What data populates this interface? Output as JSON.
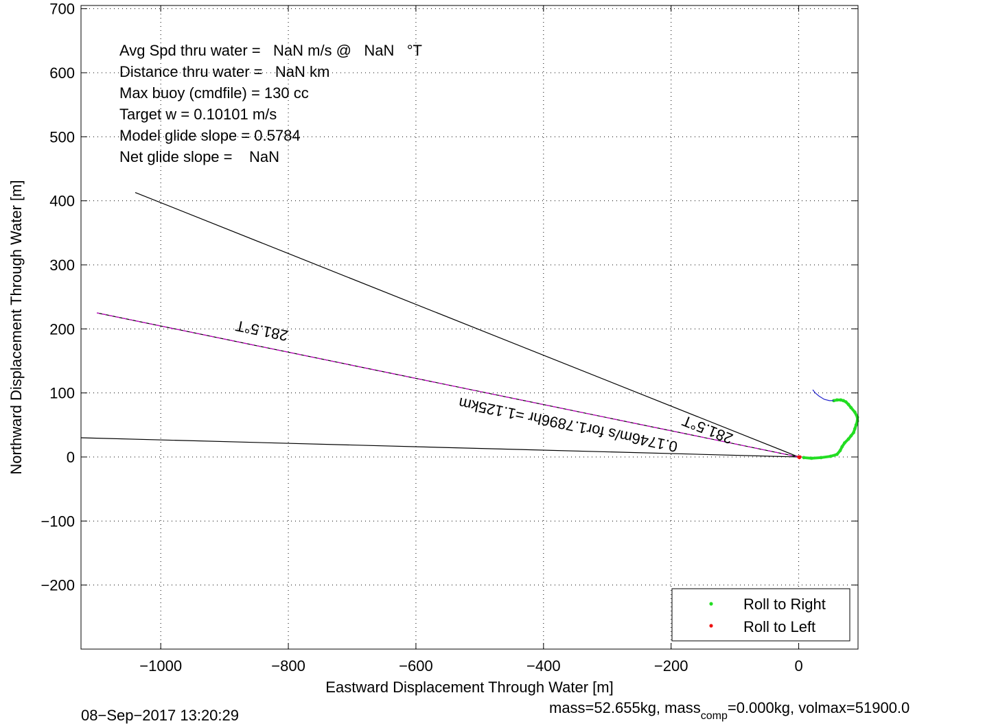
{
  "chart_data": {
    "type": "line",
    "xlabel": "Eastward Displacement Through Water [m]",
    "ylabel": "Northward Displacement Through Water [m]",
    "xlim": [
      -1125,
      93
    ],
    "ylim": [
      -300,
      705
    ],
    "xticks": [
      -1000,
      -800,
      -600,
      -400,
      -200,
      0
    ],
    "yticks": [
      -200,
      -100,
      0,
      100,
      200,
      300,
      400,
      500,
      600,
      700
    ],
    "xtick_labels": [
      "−1000",
      "−800",
      "−600",
      "−400",
      "−200",
      "0"
    ],
    "ytick_labels": [
      "−200",
      "−100",
      "0",
      "100",
      "200",
      "300",
      "400",
      "500",
      "600",
      "700"
    ],
    "grid": true,
    "annotations": [
      "Avg Spd thru water =   NaN m/s @   NaN   °T",
      "Distance thru water =   NaN km",
      "Max buoy (cmdfile) = 130 cc",
      "Target w = 0.10101 m/s",
      "Model glide slope = 0.5784",
      "Net glide slope =    NaN"
    ],
    "heading_lines": [
      {
        "color": "#000000",
        "x": [
          0,
          -1040
        ],
        "y": [
          0,
          413
        ]
      },
      {
        "color": "#000000",
        "x": [
          0,
          -1125
        ],
        "y": [
          0,
          30
        ]
      },
      {
        "color": "#cc00cc",
        "dashed": true,
        "x": [
          0,
          -1100
        ],
        "y": [
          0,
          225
        ]
      }
    ],
    "rotated_labels": [
      {
        "text": "281.5°T",
        "x": -840,
        "y": 205,
        "angle": 191.5
      },
      {
        "text": "281.5°T",
        "x": -140,
        "y": 50,
        "angle": 201.6
      },
      {
        "text": "0.1746m/s for1.7896hr =1.125km",
        "x": -360,
        "y": 58,
        "angle": 191.5
      }
    ],
    "series": [
      {
        "name": "Roll to Right",
        "color": "#22dd22",
        "x": [
          8,
          20,
          35,
          50,
          60,
          65,
          68,
          72,
          78,
          82,
          86,
          88,
          90,
          92,
          92,
          88,
          82,
          78,
          74,
          70,
          66,
          60,
          55
        ],
        "y": [
          -1,
          -2,
          -1,
          1,
          4,
          10,
          16,
          22,
          28,
          33,
          38,
          44,
          50,
          56,
          62,
          70,
          77,
          82,
          86,
          88,
          89,
          89,
          88
        ]
      },
      {
        "name": "Roll to Left",
        "color": "#ee1111",
        "x": [
          0,
          1,
          2
        ],
        "y": [
          0,
          -1,
          0
        ]
      },
      {
        "color": "#2222cc",
        "x": [
          22,
          26,
          32,
          40,
          48,
          55
        ],
        "y": [
          105,
          100,
          95,
          90,
          88,
          88
        ]
      }
    ],
    "legend": {
      "placement": "lower-right",
      "entries": [
        "Roll to Right",
        "Roll to Left"
      ]
    }
  },
  "footer": {
    "timestamp": "08−Sep−2017 13:20:29",
    "mass_prefix": "mass=52.655kg, mass",
    "mass_sub": "comp",
    "mass_suffix": "=0.000kg, volmax=51900.0"
  }
}
